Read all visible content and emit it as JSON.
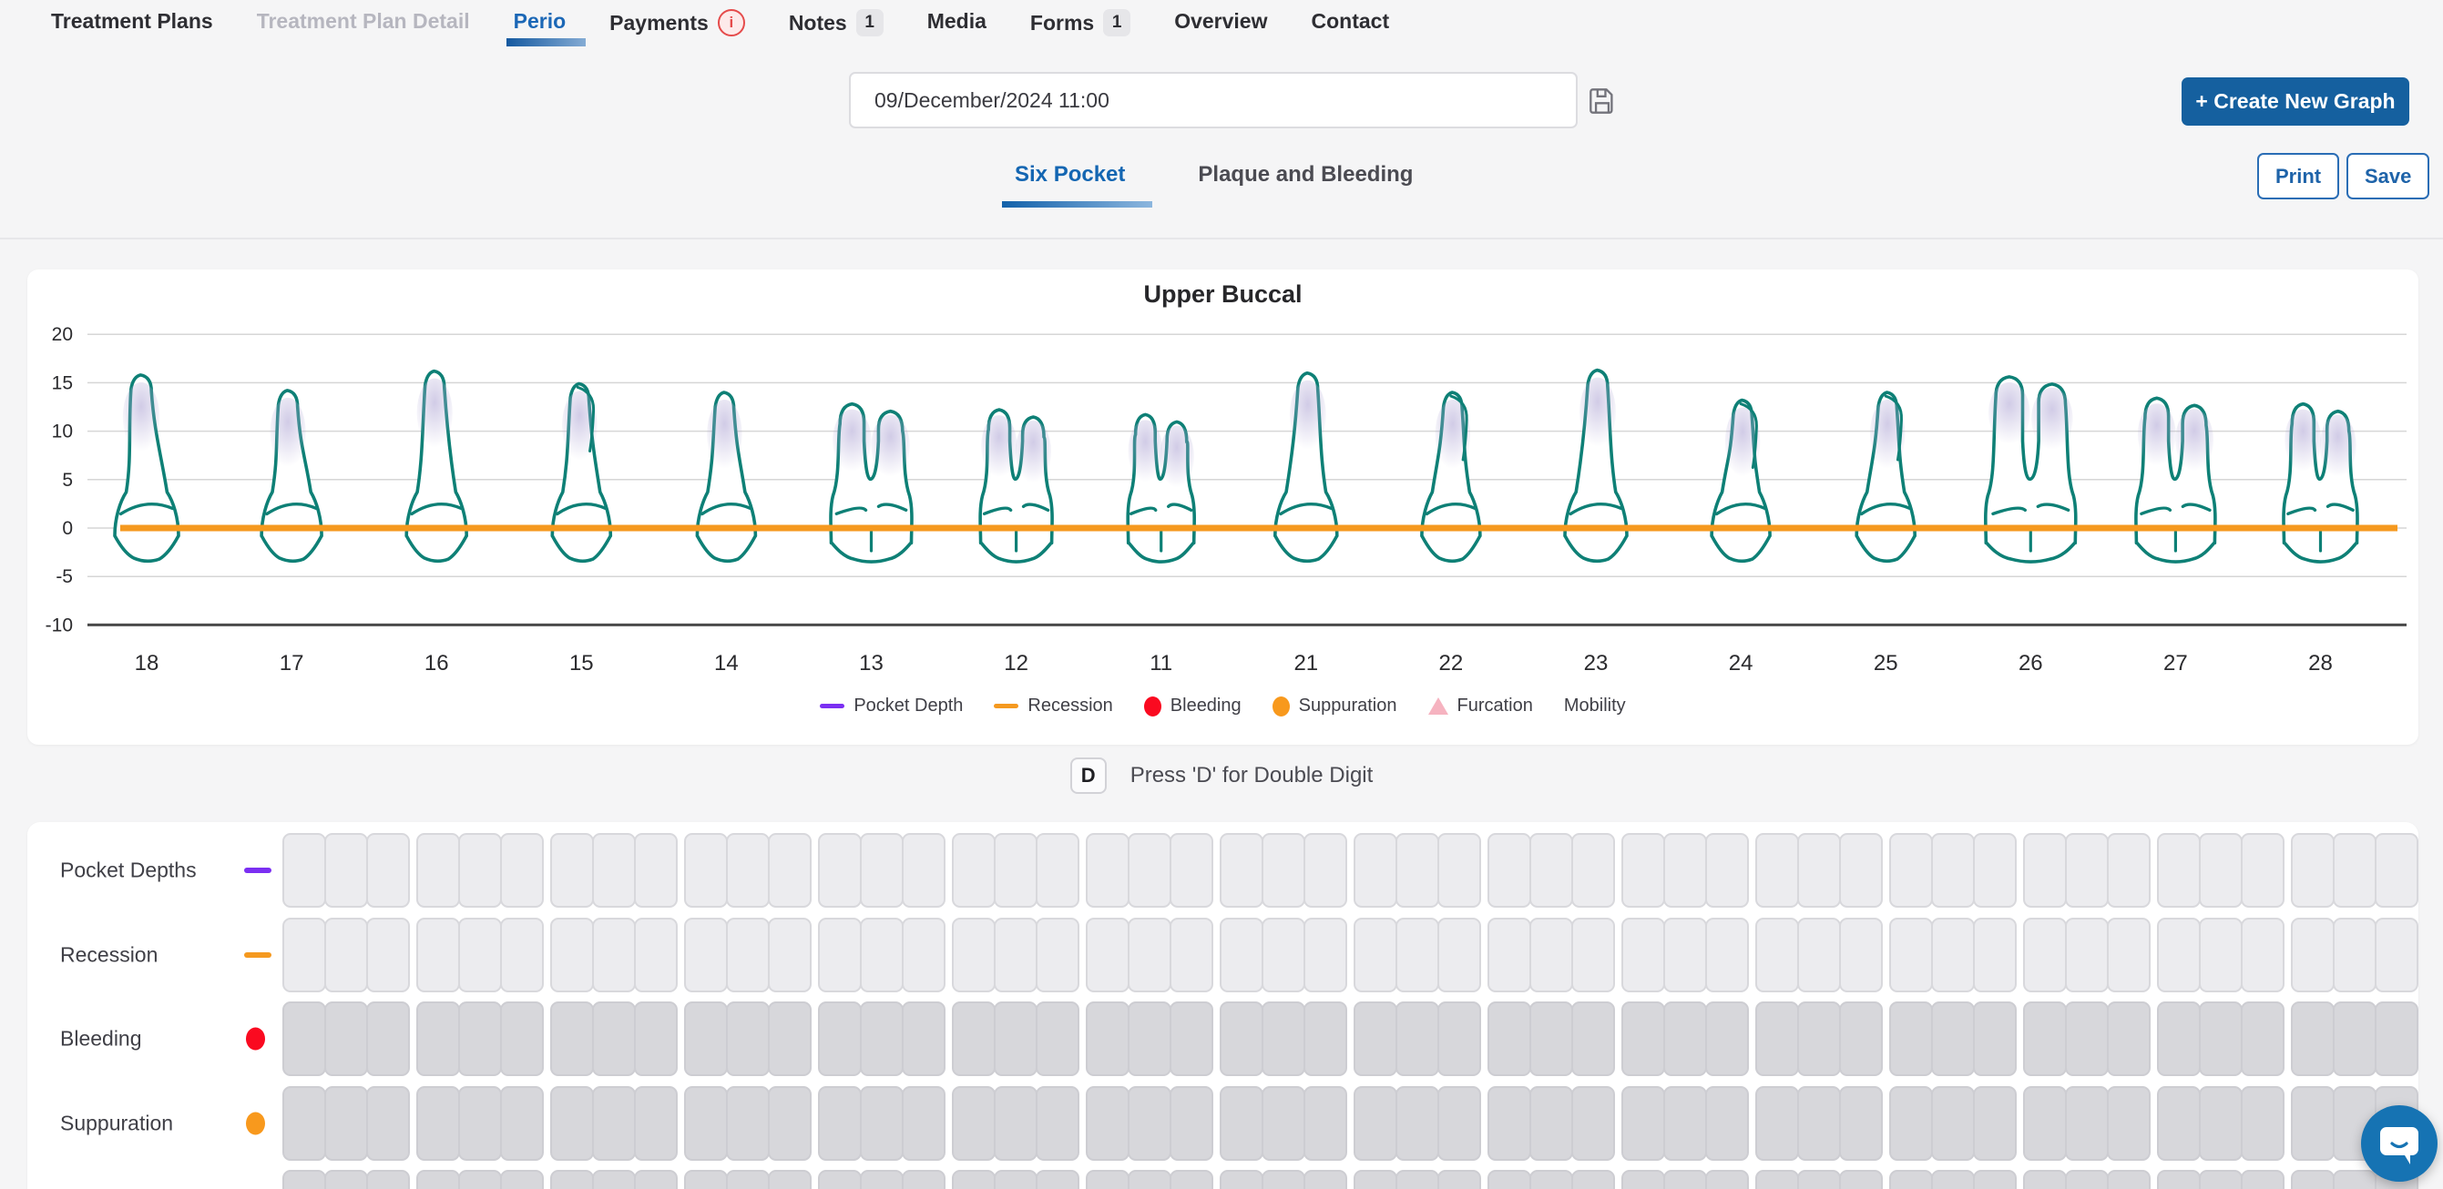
{
  "nav": {
    "items": [
      {
        "label": "Treatment Plans",
        "state": "default"
      },
      {
        "label": "Treatment Plan Detail",
        "state": "disabled"
      },
      {
        "label": "Perio",
        "state": "active"
      },
      {
        "label": "Payments",
        "state": "default",
        "icon": "info-circle"
      },
      {
        "label": "Notes",
        "state": "default",
        "badge": "1"
      },
      {
        "label": "Media",
        "state": "default"
      },
      {
        "label": "Forms",
        "state": "default",
        "badge": "1"
      },
      {
        "label": "Overview",
        "state": "default"
      },
      {
        "label": "Contact",
        "state": "default"
      }
    ]
  },
  "toolbar": {
    "date_value": "09/December/2024 11:00",
    "create_graph_label": "+ Create New Graph",
    "print_label": "Print",
    "save_label": "Save"
  },
  "view_tabs": [
    {
      "label": "Six Pocket",
      "active": true
    },
    {
      "label": "Plaque and Bleeding",
      "active": false
    }
  ],
  "hint": {
    "key": "D",
    "text": "Press 'D' for Double Digit"
  },
  "chart_data": {
    "type": "perio-tooth-chart",
    "title": "Upper Buccal",
    "ylim": [
      -10,
      20
    ],
    "yticks": [
      20,
      15,
      10,
      5,
      0,
      -5,
      -10
    ],
    "categories": [
      "18",
      "17",
      "16",
      "15",
      "14",
      "13",
      "12",
      "11",
      "21",
      "22",
      "23",
      "24",
      "25",
      "26",
      "27",
      "28"
    ],
    "grid": true,
    "tooth_outline_color": "#0e8076",
    "recession_line": {
      "value": 0,
      "color": "#f5991f"
    },
    "teeth": [
      {
        "num": "18",
        "type": "single",
        "top": 15.8,
        "width": 70,
        "lean": -6
      },
      {
        "num": "17",
        "type": "single",
        "top": 14.2,
        "width": 66,
        "lean": -4
      },
      {
        "num": "16",
        "type": "single",
        "top": 16.2,
        "width": 66,
        "lean": -2
      },
      {
        "num": "15",
        "type": "premolar",
        "top": 14.9,
        "width": 64,
        "lean": -2
      },
      {
        "num": "14",
        "type": "single",
        "top": 14.0,
        "width": 64,
        "lean": -2
      },
      {
        "num": "13",
        "type": "molar",
        "top": 13.0,
        "width": 88,
        "lean": 0
      },
      {
        "num": "12",
        "type": "molar",
        "top": 12.4,
        "width": 78,
        "lean": 0
      },
      {
        "num": "11",
        "type": "molar",
        "top": 11.9,
        "width": 72,
        "lean": 0
      },
      {
        "num": "21",
        "type": "single",
        "top": 16.0,
        "width": 68,
        "lean": 2
      },
      {
        "num": "22",
        "type": "premolar",
        "top": 14.0,
        "width": 64,
        "lean": 2
      },
      {
        "num": "23",
        "type": "single",
        "top": 16.3,
        "width": 68,
        "lean": 2
      },
      {
        "num": "24",
        "type": "premolar",
        "top": 13.2,
        "width": 64,
        "lean": 2
      },
      {
        "num": "25",
        "type": "premolar",
        "top": 14.0,
        "width": 64,
        "lean": 2
      },
      {
        "num": "26",
        "type": "molar",
        "top": 15.8,
        "width": 98,
        "lean": 0
      },
      {
        "num": "27",
        "type": "molar",
        "top": 13.6,
        "width": 86,
        "lean": 0
      },
      {
        "num": "28",
        "type": "molar",
        "top": 13.0,
        "width": 80,
        "lean": 0
      }
    ],
    "legend": [
      {
        "label": "Pocket Depth",
        "marker": "line",
        "color": "#7b2ff2"
      },
      {
        "label": "Recession",
        "marker": "line",
        "color": "#f5991f"
      },
      {
        "label": "Bleeding",
        "marker": "dot",
        "color": "#fa0a20"
      },
      {
        "label": "Suppuration",
        "marker": "dot",
        "color": "#f8991d"
      },
      {
        "label": "Furcation",
        "marker": "triangle",
        "color": "#f6b3c0"
      },
      {
        "label": "Mobility",
        "marker": "none",
        "color": ""
      }
    ],
    "legend_position": "bottom"
  },
  "perio_grid": {
    "groups": 16,
    "cells_per_group": 3,
    "rows": [
      {
        "label": "Pocket Depths",
        "marker": "line",
        "color": "#7b2ff2",
        "cell_style": "light"
      },
      {
        "label": "Recession",
        "marker": "line",
        "color": "#f5991f",
        "cell_style": "light"
      },
      {
        "label": "Bleeding",
        "marker": "dot",
        "color": "#fa0a20",
        "cell_style": "dark"
      },
      {
        "label": "Suppuration",
        "marker": "dot",
        "color": "#f8991d",
        "cell_style": "dark"
      },
      {
        "label": "",
        "marker": "none",
        "color": "",
        "cell_style": "dark"
      }
    ]
  },
  "colors": {
    "accent_blue": "#15609f",
    "active_tab_blue": "#1b67b6",
    "background": "#f5f5f6",
    "tooth_teal": "#0e8076",
    "recession_orange": "#f5991f",
    "pocket_purple": "#7b2ff2",
    "bleeding_red": "#fa0a20",
    "suppuration_orange": "#f8991d",
    "furcation_pink": "#f6b3c0",
    "chat_blue": "#1673b3"
  }
}
